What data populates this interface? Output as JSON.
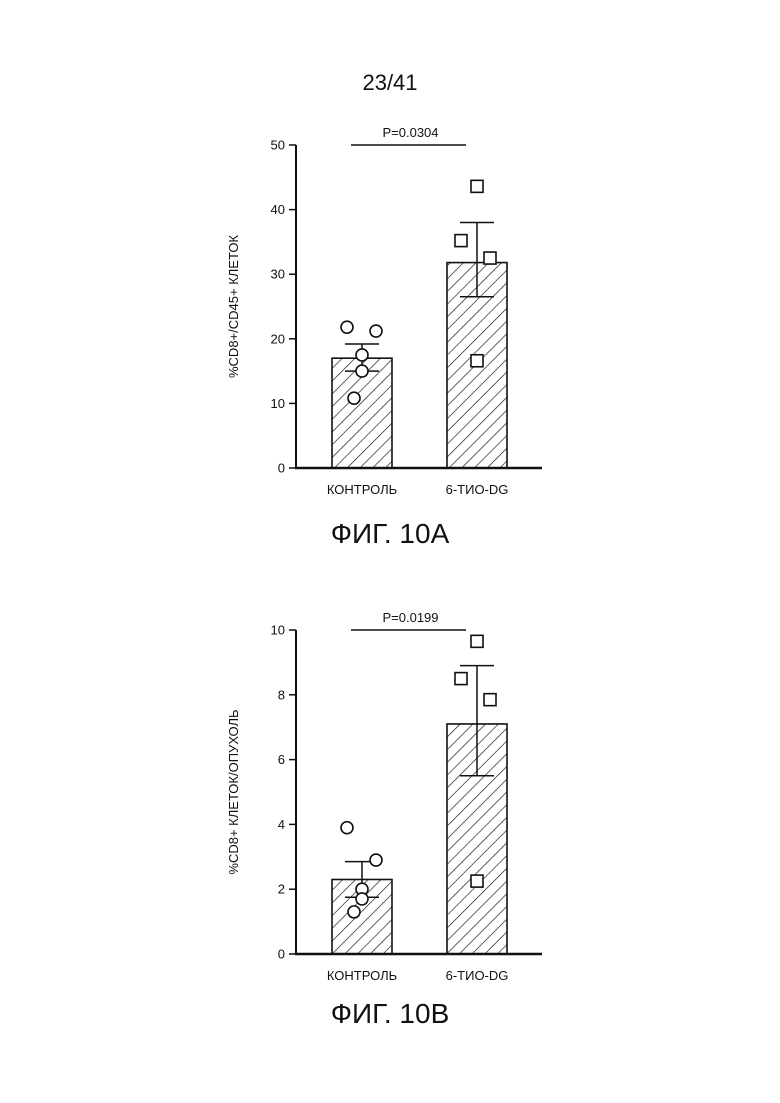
{
  "page": {
    "number": "23/41"
  },
  "figures": [
    {
      "caption": "ФИГ. 10А"
    },
    {
      "caption": "ФИГ. 10В"
    }
  ],
  "chart_data": [
    {
      "type": "bar",
      "categories": [
        "КОНТРОЛЬ",
        "6-ТИО-DG"
      ],
      "values": [
        17.0,
        31.8
      ],
      "error_bars": [
        {
          "low": 15.0,
          "high": 19.2
        },
        {
          "low": 26.5,
          "high": 38.0
        }
      ],
      "points": [
        {
          "category": "КОНТРОЛЬ",
          "marker": "circle",
          "values": [
            21.8,
            21.2,
            17.5,
            15.0,
            10.8
          ]
        },
        {
          "category": "6-ТИО-DG",
          "marker": "square",
          "values": [
            43.6,
            35.2,
            32.5,
            16.6
          ]
        }
      ],
      "title": "",
      "xlabel": "",
      "ylabel": "%CD8+/CD45+ КЛЕТОК",
      "ylim": [
        0,
        50
      ],
      "yticks": [
        0,
        10,
        20,
        30,
        40,
        50
      ],
      "annotation": "P=0.0304",
      "fill": "hatched",
      "grid": false
    },
    {
      "type": "bar",
      "categories": [
        "КОНТРОЛЬ",
        "6-ТИО-DG"
      ],
      "values": [
        2.3,
        7.1
      ],
      "error_bars": [
        {
          "low": 1.75,
          "high": 2.85
        },
        {
          "low": 5.5,
          "high": 8.9
        }
      ],
      "points": [
        {
          "category": "КОНТРОЛЬ",
          "marker": "circle",
          "values": [
            3.9,
            2.9,
            2.0,
            1.7,
            1.3
          ]
        },
        {
          "category": "6-ТИО-DG",
          "marker": "square",
          "values": [
            9.65,
            8.5,
            7.85,
            2.25
          ]
        }
      ],
      "title": "",
      "xlabel": "",
      "ylabel": "%CD8+ КЛЕТОК/ОПУХОЛЬ",
      "ylim": [
        0,
        10
      ],
      "yticks": [
        0,
        2,
        4,
        6,
        8,
        10
      ],
      "annotation": "P=0.0199",
      "fill": "hatched",
      "grid": false
    }
  ]
}
